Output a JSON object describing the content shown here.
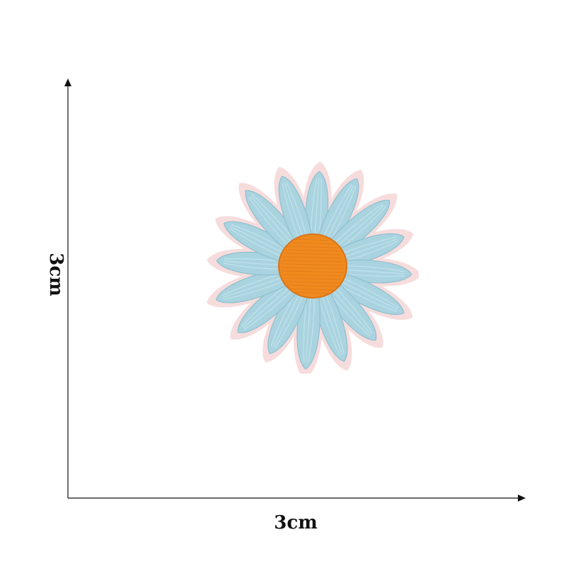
{
  "dimensions": {
    "width_label": "3cm",
    "height_label": "3cm"
  },
  "colors": {
    "background": "#ffffff",
    "axis": "#111111",
    "petal": "#a9d3df",
    "petal_edge": "#bfe1ea",
    "petal_shadow": "#8fbfcf",
    "outline": "#f6dcdc",
    "center": "#f08a1e",
    "center_shadow": "#d9741a"
  },
  "image": {
    "subject": "embroidered-daisy-patch-icon"
  }
}
